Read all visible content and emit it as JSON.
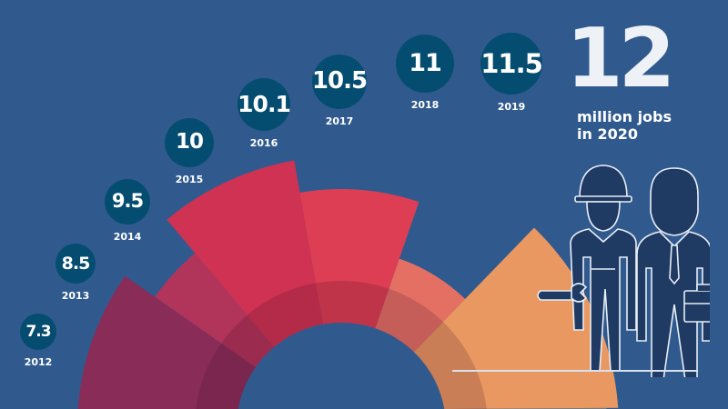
{
  "chart_data": {
    "type": "radial-bar",
    "title": "",
    "categories": [
      "2012",
      "2013",
      "2014",
      "2015",
      "2016",
      "2017",
      "2018",
      "2019"
    ],
    "values": [
      7.3,
      8.5,
      9.5,
      10,
      10.1,
      10.5,
      11,
      11.5
    ],
    "value_labels": [
      "7.3",
      "8.5",
      "9.5",
      "10",
      "10.1",
      "10.5",
      "11",
      "11.5"
    ],
    "colors": {
      "background": "#305a8e",
      "bubble": "#054d70",
      "segments": [
        "#8e2a55",
        "#b83358",
        "#d8304f",
        "#e83d51",
        "#ee7262",
        "#f49c5f",
        "#f8b65c"
      ]
    }
  },
  "headline": {
    "number": "12",
    "line1": "million jobs",
    "line2": "in 2020"
  },
  "illustration": {
    "icons": [
      "female-worker-icon",
      "businessman-icon"
    ]
  }
}
